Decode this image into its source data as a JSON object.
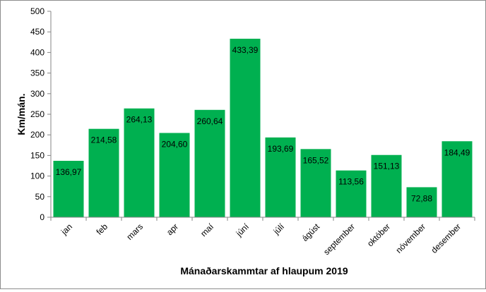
{
  "chart_data": {
    "type": "bar",
    "title": "",
    "xlabel": "Mánaðarskammtar af hlaupum 2019",
    "ylabel": "Km/mán.",
    "categories": [
      "jan",
      "feb",
      "mars",
      "apr",
      "maí",
      "júní",
      "júlí",
      "ágúst",
      "september",
      "október",
      "nóvember",
      "desember"
    ],
    "values": [
      136.97,
      214.58,
      264.13,
      204.6,
      260.64,
      433.39,
      193.69,
      165.52,
      113.56,
      151.13,
      72.88,
      184.49
    ],
    "value_labels": [
      "136,97",
      "214,58",
      "264,13",
      "204,60",
      "260,64",
      "433,39",
      "193,69",
      "165,52",
      "113,56",
      "151,13",
      "72,88",
      "184,49"
    ],
    "ylim": [
      0,
      500
    ],
    "yticks": [
      0,
      50,
      100,
      150,
      200,
      250,
      300,
      350,
      400,
      450,
      500
    ],
    "grid": false,
    "legend": "none",
    "bar_color": "#00b050",
    "axis_color": "#868686"
  }
}
